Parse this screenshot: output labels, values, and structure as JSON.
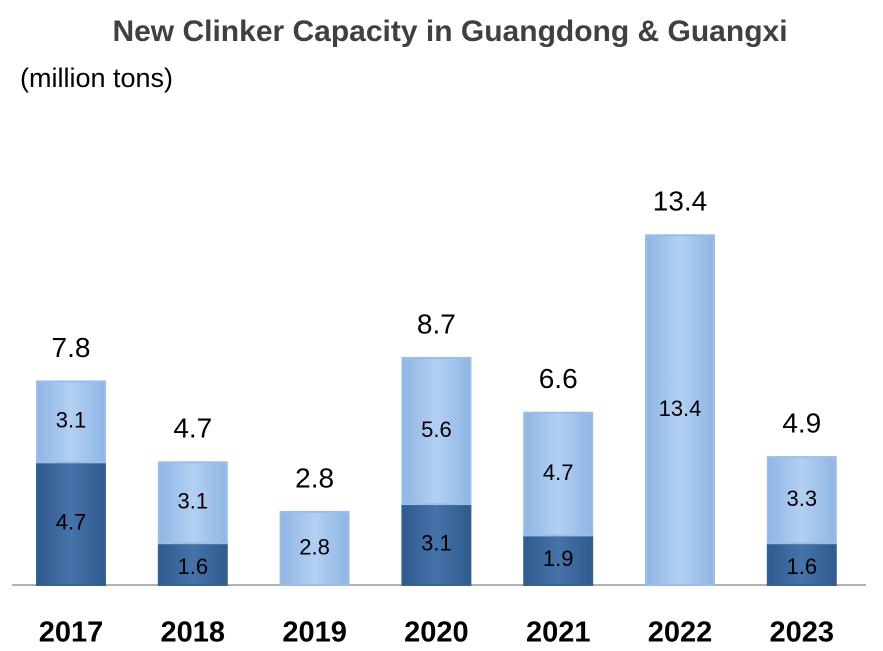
{
  "chart_data": {
    "type": "stacked_bar",
    "title": "New Clinker Capacity in Guangdong & Guangxi",
    "subtitle": "(million tons)",
    "categories": [
      "2017",
      "2018",
      "2019",
      "2020",
      "2021",
      "2022",
      "2023"
    ],
    "series": [
      {
        "color": "#3e6aa0",
        "values": [
          4.7,
          1.6,
          null,
          3.1,
          1.9,
          null,
          1.6
        ]
      },
      {
        "color": "#a6c6ee",
        "values": [
          3.1,
          3.1,
          2.8,
          5.6,
          4.7,
          13.4,
          3.3
        ]
      }
    ],
    "totals": [
      7.8,
      4.7,
      2.8,
      8.7,
      6.6,
      13.4,
      4.9
    ]
  }
}
